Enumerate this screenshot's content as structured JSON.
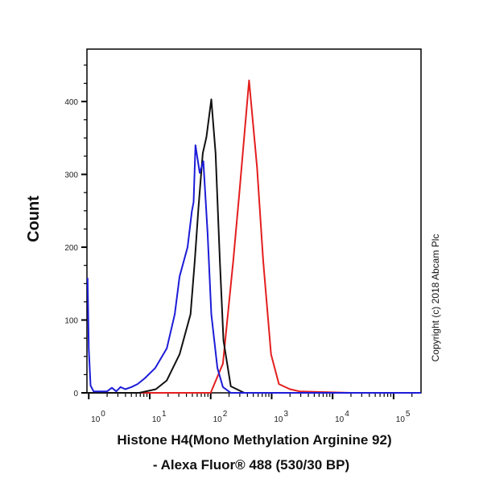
{
  "chart_data": {
    "type": "line",
    "title": "",
    "xlabel_lines": [
      "Histone H4(Mono Methylation Arginine 92)",
      "- Alexa Fluor® 488 (530/30 BP)"
    ],
    "ylabel": "Count",
    "x_scale": "log10",
    "xlim_log10": [
      -0.03,
      5.45
    ],
    "ylim": [
      0,
      472
    ],
    "y_ticks": [
      0,
      100,
      200,
      300,
      400
    ],
    "x_ticks": [
      {
        "base": "10",
        "exp": "0"
      },
      {
        "base": "10",
        "exp": "1"
      },
      {
        "base": "10",
        "exp": "2"
      },
      {
        "base": "10",
        "exp": "3"
      },
      {
        "base": "10",
        "exp": "4"
      },
      {
        "base": "10",
        "exp": "5"
      }
    ],
    "grid": false,
    "annotation": "Copyright (c) 2018 Abcam Plc",
    "series": [
      {
        "name": "blue",
        "color": "#1c1cd8",
        "points_log10x": [
          [
            -0.02,
            158
          ],
          [
            0.0,
            60
          ],
          [
            0.03,
            10
          ],
          [
            0.08,
            2
          ],
          [
            0.3,
            2
          ],
          [
            0.38,
            7
          ],
          [
            0.45,
            2
          ],
          [
            0.52,
            8
          ],
          [
            0.6,
            5
          ],
          [
            0.7,
            8
          ],
          [
            0.8,
            12
          ],
          [
            0.92,
            20
          ],
          [
            1.09,
            34
          ],
          [
            1.28,
            61
          ],
          [
            1.41,
            108
          ],
          [
            1.49,
            160
          ],
          [
            1.62,
            200
          ],
          [
            1.69,
            249
          ],
          [
            1.72,
            262
          ],
          [
            1.75,
            340
          ],
          [
            1.82,
            302
          ],
          [
            1.88,
            318
          ],
          [
            1.95,
            219
          ],
          [
            2.01,
            108
          ],
          [
            2.11,
            34
          ],
          [
            2.2,
            8
          ],
          [
            2.33,
            0
          ],
          [
            5.45,
            0
          ]
        ]
      },
      {
        "name": "black",
        "color": "#111111",
        "points_log10x": [
          [
            -0.03,
            0
          ],
          [
            0.83,
            0
          ],
          [
            1.1,
            5
          ],
          [
            1.28,
            17
          ],
          [
            1.49,
            53
          ],
          [
            1.67,
            108
          ],
          [
            1.74,
            182
          ],
          [
            1.8,
            255
          ],
          [
            1.87,
            329
          ],
          [
            1.93,
            351
          ],
          [
            2.01,
            403
          ],
          [
            2.08,
            329
          ],
          [
            2.15,
            182
          ],
          [
            2.21,
            72
          ],
          [
            2.33,
            9
          ],
          [
            2.55,
            0
          ],
          [
            5.45,
            0
          ]
        ]
      },
      {
        "name": "red",
        "color": "#e41e1e",
        "points_log10x": [
          [
            -0.03,
            0
          ],
          [
            2.0,
            0
          ],
          [
            2.2,
            40
          ],
          [
            2.37,
            182
          ],
          [
            2.47,
            274
          ],
          [
            2.63,
            429
          ],
          [
            2.76,
            310
          ],
          [
            2.86,
            182
          ],
          [
            2.99,
            53
          ],
          [
            3.12,
            12
          ],
          [
            3.3,
            5
          ],
          [
            3.46,
            2
          ],
          [
            4.3,
            0
          ],
          [
            5.45,
            0
          ]
        ]
      }
    ]
  }
}
